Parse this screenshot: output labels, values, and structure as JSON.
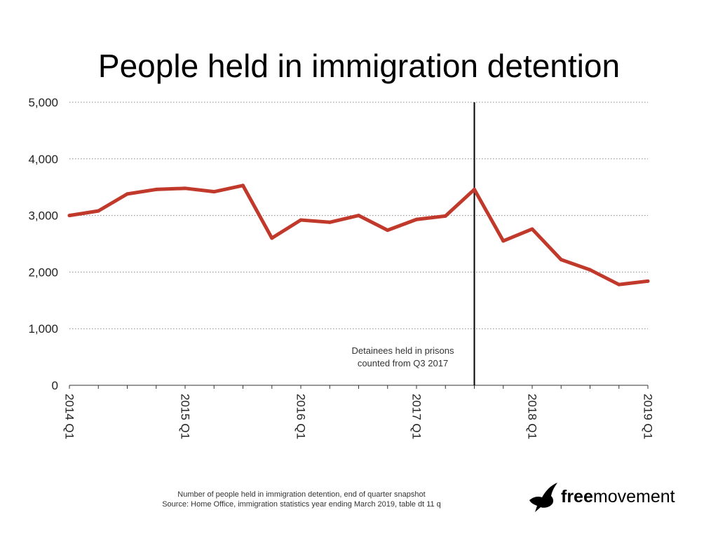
{
  "chart_data": {
    "type": "line",
    "title": "People held in immigration detention",
    "xlabel": "",
    "ylabel": "",
    "ylim": [
      0,
      5000
    ],
    "yticks": [
      0,
      1000,
      2000,
      3000,
      4000,
      5000
    ],
    "ytick_labels": [
      "0",
      "1,000",
      "2,000",
      "3,000",
      "4,000",
      "5,000"
    ],
    "x": [
      "2014 Q1",
      "2014 Q2",
      "2014 Q3",
      "2014 Q4",
      "2015 Q1",
      "2015 Q2",
      "2015 Q3",
      "2015 Q4",
      "2016 Q1",
      "2016 Q2",
      "2016 Q3",
      "2016 Q4",
      "2017 Q1",
      "2017 Q2",
      "2017 Q3",
      "2017 Q4",
      "2018 Q1",
      "2018 Q2",
      "2018 Q3",
      "2018 Q4",
      "2019 Q1"
    ],
    "xtick_labels": [
      "2014 Q1",
      "2015 Q1",
      "2016 Q1",
      "2017 Q1",
      "2018 Q1",
      "2019 Q1"
    ],
    "series": [
      {
        "name": "",
        "color": "#c0392b",
        "values": [
          3000,
          3080,
          3380,
          3460,
          3480,
          3420,
          3530,
          2600,
          2920,
          2880,
          3000,
          2740,
          2930,
          2990,
          3460,
          2550,
          2760,
          2220,
          2040,
          1780,
          1840
        ]
      }
    ],
    "grid": "horizontal dotted",
    "annotation": {
      "at_x": "2017 Q3",
      "lines": [
        "Detainees held in prisons",
        "counted from Q3 2017"
      ]
    }
  },
  "footer": {
    "line1": "Number of people held in immigration detention, end of quarter snapshot",
    "line2": "Source: Home Office, immigration statistics year ending March 2019, table dt 11 q"
  },
  "logo": {
    "bold": "free",
    "regular": "movement",
    "icon": "bird-icon"
  }
}
